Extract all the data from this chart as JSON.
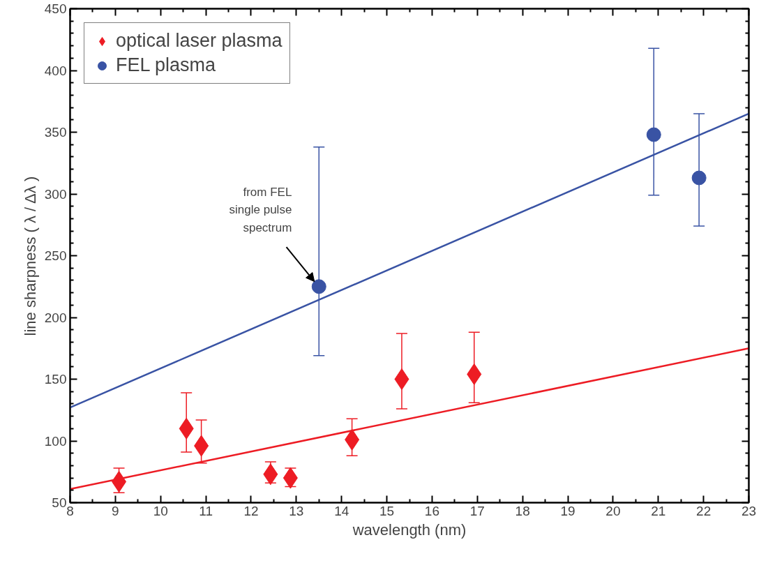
{
  "chart_data": {
    "type": "scatter",
    "xlabel": "wavelength (nm)",
    "ylabel": "line sharpness ( λ / Δλ )",
    "xlim": [
      8,
      23
    ],
    "ylim": [
      50,
      450
    ],
    "xticks": [
      8,
      9,
      10,
      11,
      12,
      13,
      14,
      15,
      16,
      17,
      18,
      19,
      20,
      21,
      22,
      23
    ],
    "yticks": [
      50,
      100,
      150,
      200,
      250,
      300,
      350,
      400,
      450
    ],
    "grid": false,
    "legend": "top left",
    "series": [
      {
        "name": "optical laser plasma",
        "color": "#ed1c24",
        "marker": "diamond",
        "x": [
          9.08,
          10.57,
          10.9,
          12.43,
          12.87,
          14.23,
          15.33,
          16.93
        ],
        "values": [
          67,
          110,
          96,
          73,
          70,
          101,
          150,
          154
        ],
        "errors": [
          [
            58,
            78
          ],
          [
            91,
            139
          ],
          [
            82,
            117
          ],
          [
            66,
            83
          ],
          [
            63,
            78
          ],
          [
            88,
            118
          ],
          [
            126,
            187
          ],
          [
            131,
            188
          ]
        ]
      },
      {
        "name": "FEL plasma",
        "color": "#3953a4",
        "marker": "circle",
        "x": [
          13.5,
          20.9,
          21.9
        ],
        "values": [
          225,
          348,
          313
        ],
        "errors": [
          [
            169,
            338
          ],
          [
            299,
            418
          ],
          [
            274,
            365
          ]
        ]
      },
      {
        "type": "line",
        "color": "#ed1c24",
        "x": [
          8,
          23
        ],
        "values": [
          61,
          175
        ]
      },
      {
        "type": "line",
        "color": "#3953a4",
        "x": [
          8,
          23
        ],
        "values": [
          127,
          365
        ]
      }
    ],
    "annotations": [
      {
        "text": "from FEL\nsingle pulse\nspectrum",
        "x": 13.4,
        "y": 229
      }
    ]
  }
}
